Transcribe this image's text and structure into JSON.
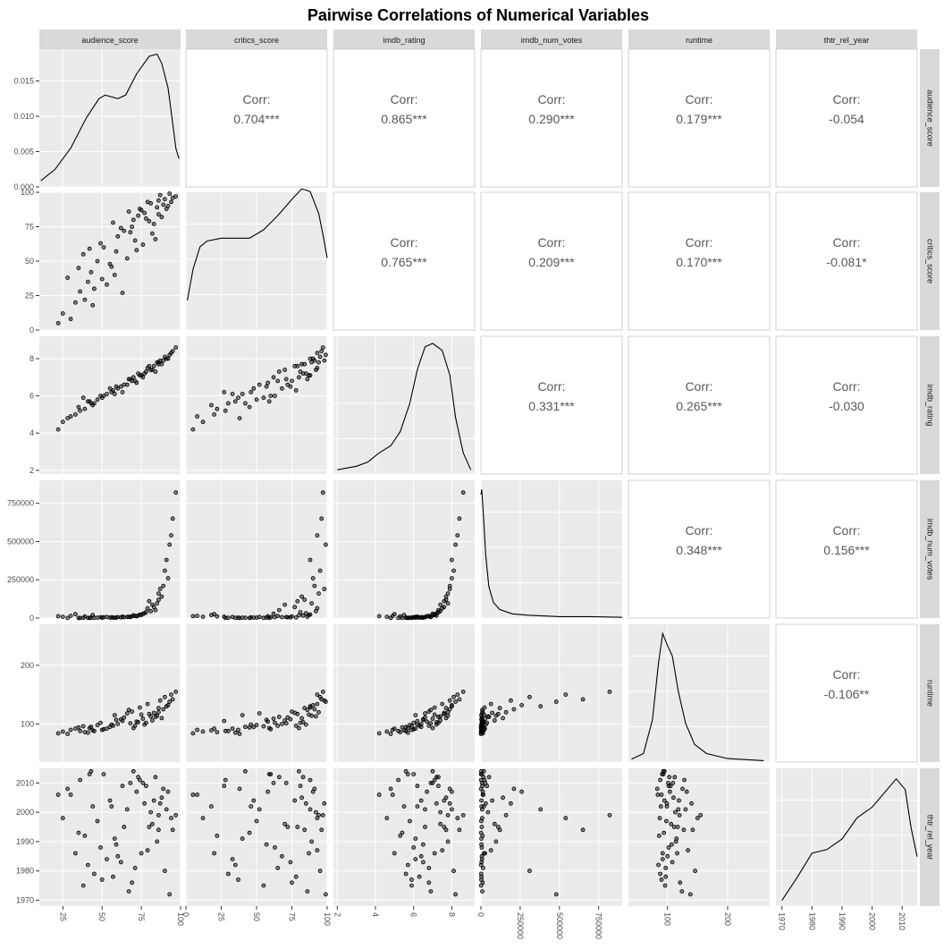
{
  "chart_data": {
    "type": "scatter",
    "title": "Pairwise Correlations of Numerical Variables",
    "variables": [
      "audience_score",
      "critics_score",
      "imdb_rating",
      "imdb_num_votes",
      "runtime",
      "thtr_rel_year"
    ],
    "correlation_label": "Corr:",
    "correlations": [
      {
        "row": "audience_score",
        "col": "critics_score",
        "value": "0.704***"
      },
      {
        "row": "audience_score",
        "col": "imdb_rating",
        "value": "0.865***"
      },
      {
        "row": "audience_score",
        "col": "imdb_num_votes",
        "value": "0.290***"
      },
      {
        "row": "audience_score",
        "col": "runtime",
        "value": "0.179***"
      },
      {
        "row": "audience_score",
        "col": "thtr_rel_year",
        "value": "-0.054"
      },
      {
        "row": "critics_score",
        "col": "imdb_rating",
        "value": "0.765***"
      },
      {
        "row": "critics_score",
        "col": "imdb_num_votes",
        "value": "0.209***"
      },
      {
        "row": "critics_score",
        "col": "runtime",
        "value": "0.170***"
      },
      {
        "row": "critics_score",
        "col": "thtr_rel_year",
        "value": "-0.081*"
      },
      {
        "row": "imdb_rating",
        "col": "imdb_num_votes",
        "value": "0.331***"
      },
      {
        "row": "imdb_rating",
        "col": "runtime",
        "value": "0.265***"
      },
      {
        "row": "imdb_rating",
        "col": "thtr_rel_year",
        "value": "-0.030"
      },
      {
        "row": "imdb_num_votes",
        "col": "runtime",
        "value": "0.348***"
      },
      {
        "row": "imdb_num_votes",
        "col": "thtr_rel_year",
        "value": "0.156***"
      },
      {
        "row": "runtime",
        "col": "thtr_rel_year",
        "value": "-0.106**"
      }
    ],
    "ranges": {
      "audience_score": [
        10,
        100
      ],
      "critics_score": [
        0,
        100
      ],
      "imdb_rating": [
        1.8,
        9.2
      ],
      "imdb_num_votes": [
        0,
        900000
      ],
      "runtime": [
        35,
        270
      ],
      "thtr_rel_year": [
        1968,
        2015
      ]
    },
    "x_ticks": {
      "audience_score": [
        "25",
        "50",
        "75",
        "100"
      ],
      "critics_score": [
        "0",
        "25",
        "50",
        "75",
        "100"
      ],
      "imdb_rating": [
        "2",
        "4",
        "6",
        "8"
      ],
      "imdb_num_votes": [
        "0",
        "250000",
        "500000",
        "750000"
      ],
      "runtime": [
        "100",
        "200"
      ],
      "thtr_rel_year": [
        "1970",
        "1980",
        "1990",
        "2000",
        "2010"
      ]
    },
    "density_y_ticks": [
      "0.000",
      "0.005",
      "0.010",
      "0.015"
    ],
    "density_y_range": [
      0,
      0.0195
    ],
    "y_ticks": {
      "critics_score": [
        "0",
        "25",
        "50",
        "75",
        "100"
      ],
      "imdb_rating": [
        "2",
        "4",
        "6",
        "8"
      ],
      "imdb_num_votes": [
        "0",
        "250000",
        "500000",
        "750000"
      ],
      "runtime": [
        "100",
        "200"
      ],
      "thtr_rel_year": [
        "1970",
        "1980",
        "1990",
        "2000",
        "2010"
      ]
    },
    "density_curves": {
      "audience_score": [
        [
          11,
          0.0009
        ],
        [
          20,
          0.0025
        ],
        [
          30,
          0.0055
        ],
        [
          40,
          0.0098
        ],
        [
          48,
          0.0125
        ],
        [
          52,
          0.013
        ],
        [
          60,
          0.0125
        ],
        [
          65,
          0.013
        ],
        [
          72,
          0.016
        ],
        [
          80,
          0.0185
        ],
        [
          85,
          0.0188
        ],
        [
          88,
          0.0175
        ],
        [
          92,
          0.014
        ],
        [
          95,
          0.009
        ],
        [
          97,
          0.0055
        ],
        [
          99,
          0.004
        ]
      ],
      "critics_score": [
        [
          1,
          0.0042
        ],
        [
          5,
          0.0086
        ],
        [
          10,
          0.0118
        ],
        [
          15,
          0.0126
        ],
        [
          25,
          0.013
        ],
        [
          35,
          0.013
        ],
        [
          45,
          0.013
        ],
        [
          55,
          0.0142
        ],
        [
          65,
          0.0162
        ],
        [
          75,
          0.0185
        ],
        [
          82,
          0.02
        ],
        [
          88,
          0.0196
        ],
        [
          94,
          0.0165
        ],
        [
          97,
          0.0135
        ],
        [
          100,
          0.0102
        ]
      ],
      "imdb_rating": [
        [
          2,
          0.0006
        ],
        [
          3,
          0.0011
        ],
        [
          3.6,
          0.0017
        ],
        [
          4.2,
          0.003
        ],
        [
          4.8,
          0.004
        ],
        [
          5.3,
          0.006
        ],
        [
          5.8,
          0.01
        ],
        [
          6.2,
          0.0148
        ],
        [
          6.6,
          0.018
        ],
        [
          7.0,
          0.0185
        ],
        [
          7.5,
          0.0175
        ],
        [
          7.9,
          0.014
        ],
        [
          8.2,
          0.008
        ],
        [
          8.6,
          0.003
        ],
        [
          9.0,
          0.0006
        ]
      ],
      "imdb_num_votes": [
        [
          0,
          0.0175
        ],
        [
          5000,
          0.0182
        ],
        [
          15000,
          0.015
        ],
        [
          30000,
          0.009
        ],
        [
          50000,
          0.0045
        ],
        [
          80000,
          0.0022
        ],
        [
          120000,
          0.0012
        ],
        [
          200000,
          0.0006
        ],
        [
          300000,
          0.0004
        ],
        [
          500000,
          0.0002
        ],
        [
          700000,
          0.0002
        ],
        [
          900000,
          0.0001
        ]
      ],
      "runtime": [
        [
          40,
          0.0004
        ],
        [
          60,
          0.0012
        ],
        [
          75,
          0.006
        ],
        [
          85,
          0.014
        ],
        [
          92,
          0.0182
        ],
        [
          100,
          0.0165
        ],
        [
          108,
          0.015
        ],
        [
          118,
          0.01
        ],
        [
          130,
          0.0055
        ],
        [
          145,
          0.0025
        ],
        [
          165,
          0.0012
        ],
        [
          200,
          0.0005
        ],
        [
          260,
          0.0002
        ]
      ],
      "thtr_rel_year": [
        [
          1970,
          0.0008
        ],
        [
          1975,
          0.004
        ],
        [
          1980,
          0.0075
        ],
        [
          1985,
          0.008
        ],
        [
          1990,
          0.0095
        ],
        [
          1995,
          0.0125
        ],
        [
          2000,
          0.014
        ],
        [
          2005,
          0.0165
        ],
        [
          2008,
          0.018
        ],
        [
          2011,
          0.0165
        ],
        [
          2013,
          0.011
        ],
        [
          2015,
          0.007
        ]
      ]
    },
    "points": [
      [
        80,
        79,
        7.6,
        110000,
        117,
        1995
      ],
      [
        55,
        48,
        6.4,
        3000,
        95,
        2004
      ],
      [
        91,
        88,
        8.0,
        380000,
        130,
        2001
      ],
      [
        33,
        20,
        5.0,
        25000,
        92,
        1986
      ],
      [
        68,
        71,
        6.9,
        6500,
        101,
        2010
      ],
      [
        86,
        94,
        7.8,
        160000,
        120,
        1999
      ],
      [
        45,
        30,
        5.6,
        1800,
        88,
        1979
      ],
      [
        72,
        58,
        6.7,
        12000,
        104,
        2007
      ],
      [
        95,
        96,
        8.4,
        650000,
        142,
        1994
      ],
      [
        25,
        12,
        4.6,
        8000,
        87,
        1998
      ],
      [
        62,
        74,
        6.5,
        4200,
        108,
        1983
      ],
      [
        84,
        66,
        7.3,
        52000,
        112,
        2012
      ],
      [
        38,
        55,
        5.9,
        900,
        96,
        1975
      ],
      [
        77,
        85,
        7.2,
        31000,
        99,
        2003
      ],
      [
        58,
        40,
        6.1,
        2600,
        115,
        1991
      ],
      [
        89,
        91,
        7.9,
        210000,
        125,
        2008
      ],
      [
        49,
        63,
        6.0,
        5100,
        102,
        1988
      ],
      [
        70,
        80,
        7.0,
        18000,
        93,
        2014
      ],
      [
        30,
        8,
        4.9,
        14000,
        90,
        2006
      ],
      [
        93,
        99,
        8.2,
        480000,
        138,
        1972
      ],
      [
        66,
        52,
        6.6,
        7300,
        118,
        2001
      ],
      [
        82,
        70,
        7.4,
        87000,
        106,
        1996
      ],
      [
        41,
        35,
        5.7,
        1100,
        85,
        1982
      ],
      [
        74,
        88,
        7.1,
        23000,
        128,
        2011
      ],
      [
        57,
        78,
        6.3,
        3600,
        97,
        1978
      ],
      [
        88,
        82,
        7.7,
        140000,
        110,
        2005
      ],
      [
        35,
        45,
        5.4,
        600,
        94,
        1993
      ],
      [
        63,
        27,
        6.2,
        9400,
        105,
        2009
      ],
      [
        79,
        93,
        7.5,
        64000,
        134,
        1987
      ],
      [
        51,
        60,
        6.0,
        4400,
        91,
        2013
      ],
      [
        97,
        97,
        8.6,
        820000,
        155,
        1999
      ],
      [
        44,
        18,
        5.5,
        19000,
        89,
        2002
      ],
      [
        69,
        75,
        6.8,
        11000,
        121,
        1976
      ],
      [
        85,
        89,
        7.8,
        96000,
        114,
        1990
      ],
      [
        28,
        38,
        4.8,
        700,
        83,
        2008
      ],
      [
        60,
        68,
        6.4,
        5800,
        100,
        1985
      ],
      [
        76,
        62,
        7.0,
        28000,
        109,
        2010
      ],
      [
        90,
        95,
        8.1,
        310000,
        146,
        1980
      ],
      [
        47,
        50,
        5.8,
        2100,
        98,
        1997
      ],
      [
        73,
        83,
        7.2,
        16000,
        103,
        2012
      ],
      [
        53,
        33,
        6.1,
        6800,
        92,
        1984
      ],
      [
        83,
        77,
        7.6,
        72000,
        119,
        2004
      ],
      [
        39,
        22,
        5.3,
        10500,
        86,
        1992
      ],
      [
        67,
        86,
        6.9,
        8800,
        124,
        1973
      ],
      [
        92,
        90,
        8.0,
        260000,
        132,
        2007
      ],
      [
        59,
        57,
        6.5,
        3200,
        107,
        1989
      ],
      [
        81,
        92,
        7.4,
        45000,
        113,
        2000
      ],
      [
        43,
        42,
        5.6,
        1500,
        95,
        2014
      ],
      [
        71,
        65,
        6.8,
        13500,
        97,
        1981
      ],
      [
        87,
        98,
        7.9,
        190000,
        140,
        2003
      ],
      [
        22,
        5,
        4.2,
        12000,
        84,
        2006
      ],
      [
        64,
        72,
        6.6,
        5200,
        111,
        1995
      ],
      [
        78,
        81,
        7.3,
        38000,
        102,
        2009
      ],
      [
        50,
        37,
        5.9,
        2800,
        90,
        1977
      ],
      [
        94,
        93,
        8.3,
        540000,
        150,
        1998
      ],
      [
        36,
        28,
        5.2,
        800,
        88,
        2011
      ],
      [
        75,
        87,
        7.1,
        20000,
        116,
        1986
      ],
      [
        56,
        46,
        6.2,
        4000,
        99,
        2002
      ],
      [
        86,
        84,
        7.7,
        120000,
        127,
        1994
      ],
      [
        42,
        59,
        5.7,
        1300,
        93,
        2013
      ]
    ]
  }
}
